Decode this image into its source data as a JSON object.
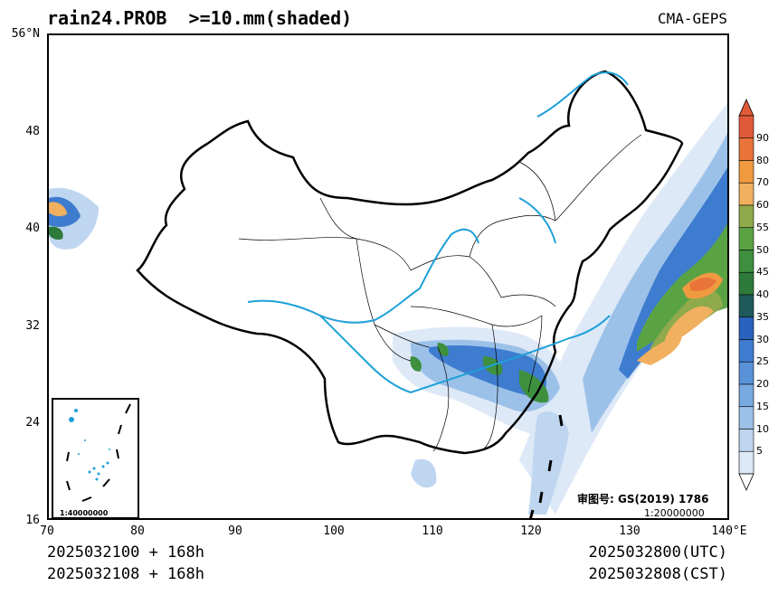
{
  "header": {
    "title": "rain24.PROB  >=10.mm(shaded)",
    "model": "CMA-GEPS"
  },
  "axes": {
    "y_labels": [
      "56°N",
      "48",
      "40",
      "32",
      "24",
      "16"
    ],
    "x_labels": [
      "70",
      "80",
      "90",
      "100",
      "110",
      "120",
      "130",
      "140°E"
    ]
  },
  "colorbar": {
    "levels": [
      "5",
      "10",
      "15",
      "20",
      "25",
      "30",
      "35",
      "40",
      "45",
      "50",
      "55",
      "60",
      "70",
      "80",
      "90"
    ],
    "colors": [
      "#dde9f7",
      "#bfd6f0",
      "#9cc1e9",
      "#78a9e0",
      "#5a92d8",
      "#3e7ccf",
      "#2a62c0",
      "#1e5a5c",
      "#2e7a3a",
      "#3e8f3e",
      "#5aa345",
      "#8faa4a",
      "#f0b060",
      "#f09a40",
      "#e8743a",
      "#e05a3a"
    ]
  },
  "inset": {
    "scale": "1:40000000"
  },
  "approval": {
    "label": "审图号: GS(2019) 1786",
    "scale": "1:20000000"
  },
  "footer": {
    "init_utc": "2025032100 + 168h",
    "init_cst": "2025032108 + 168h",
    "valid_utc": "2025032800(UTC)",
    "valid_cst": "2025032808(CST)"
  }
}
